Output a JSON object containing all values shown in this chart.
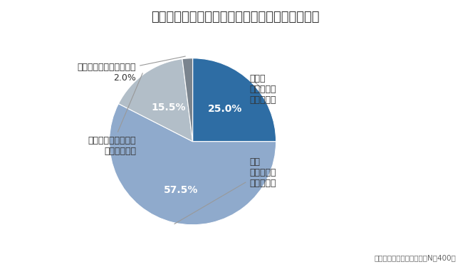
{
  "title": "勤務先でどの程度、ストレスを感じていますか。",
  "title_fontsize": 13,
  "footnote": "マンパワーグループ調べ（N＝400）",
  "slices": [
    25.0,
    57.5,
    15.5,
    2.0
  ],
  "colors": [
    "#2e6da4",
    "#8faacc",
    "#b2bec8",
    "#7a848e"
  ],
  "inside_labels": [
    "25.0%",
    "57.5%",
    "15.5%",
    ""
  ],
  "inside_label_r": [
    0.55,
    0.6,
    0.5,
    0.0
  ],
  "background_color": "#ffffff",
  "text_color": "#333333",
  "fontsize_inside": 10,
  "fontsize_outside": 9,
  "outside_labels": [
    {
      "text": "非常に\nストレスを\n感じている",
      "ha": "left",
      "va": "center",
      "xt": 0.68,
      "yt": 0.63
    },
    {
      "text": "やや\nストレスを\n感じている",
      "ha": "left",
      "va": "center",
      "xt": 0.68,
      "yt": -0.37
    },
    {
      "text": "ほとんどストレスを\n感じていない",
      "ha": "right",
      "va": "center",
      "xt": -0.68,
      "yt": -0.05
    },
    {
      "text": "ストレスを感じていない\n2.0%",
      "ha": "right",
      "va": "center",
      "xt": -0.68,
      "yt": 0.83
    }
  ]
}
